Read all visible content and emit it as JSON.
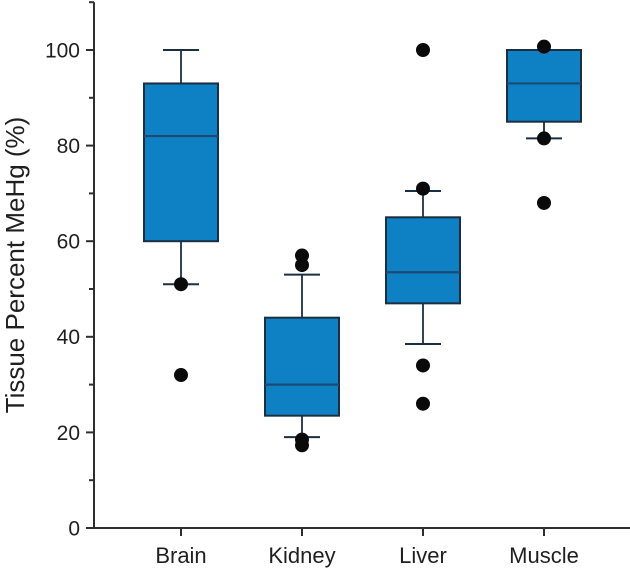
{
  "chart_data": {
    "type": "box",
    "title": "",
    "ylabel": "Tissue Percent MeHg (%)",
    "xlabel": "",
    "categories": [
      "Brain",
      "Kidney",
      "Liver",
      "Muscle"
    ],
    "ylim": [
      0,
      110
    ],
    "grid": false,
    "legend": false,
    "yticks_major": [
      0,
      20,
      40,
      60,
      80,
      100
    ],
    "ytick_labels": [
      "0",
      "20",
      "40",
      "60",
      "80",
      "100"
    ],
    "yticks_minor": [
      10,
      30,
      50,
      70,
      90,
      110
    ],
    "series": [
      {
        "category": "Brain",
        "q1": 60,
        "median": 82,
        "q3": 93,
        "whisker_low": 51,
        "whisker_high": 100,
        "points": [
          51,
          32
        ]
      },
      {
        "category": "Kidney",
        "q1": 23.5,
        "median": 30,
        "q3": 44,
        "whisker_low": 19,
        "whisker_high": 53,
        "points": [
          57,
          55,
          18.5,
          17.3
        ]
      },
      {
        "category": "Liver",
        "q1": 47,
        "median": 53.5,
        "q3": 65,
        "whisker_low": 38.5,
        "whisker_high": 70.5,
        "points": [
          100,
          71,
          34,
          26
        ]
      },
      {
        "category": "Muscle",
        "q1": 85,
        "median": 93,
        "q3": 100,
        "whisker_low": 81.5,
        "whisker_high": 100,
        "points": [
          100.7,
          81.5,
          68
        ]
      }
    ],
    "colors": {
      "box_fill": "#0e80c4",
      "box_stroke": "#1b2f42",
      "median": "#1d4a74",
      "axis": "#2e2e2e",
      "dot": "#0a0a0a",
      "background": "#ffffff"
    }
  }
}
